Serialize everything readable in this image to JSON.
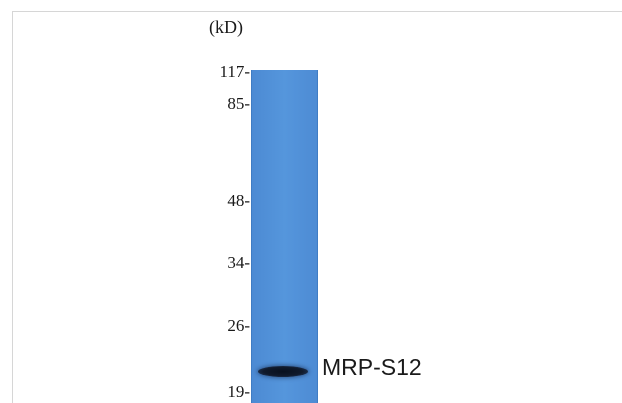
{
  "blot": {
    "unit_label": "(kD)",
    "markers": [
      "117-",
      "85-",
      "48-",
      "34-",
      "26-",
      "19-"
    ],
    "band_label": "MRP-S12",
    "lane_color": "#5596dc",
    "band_color": "#0c1424"
  }
}
